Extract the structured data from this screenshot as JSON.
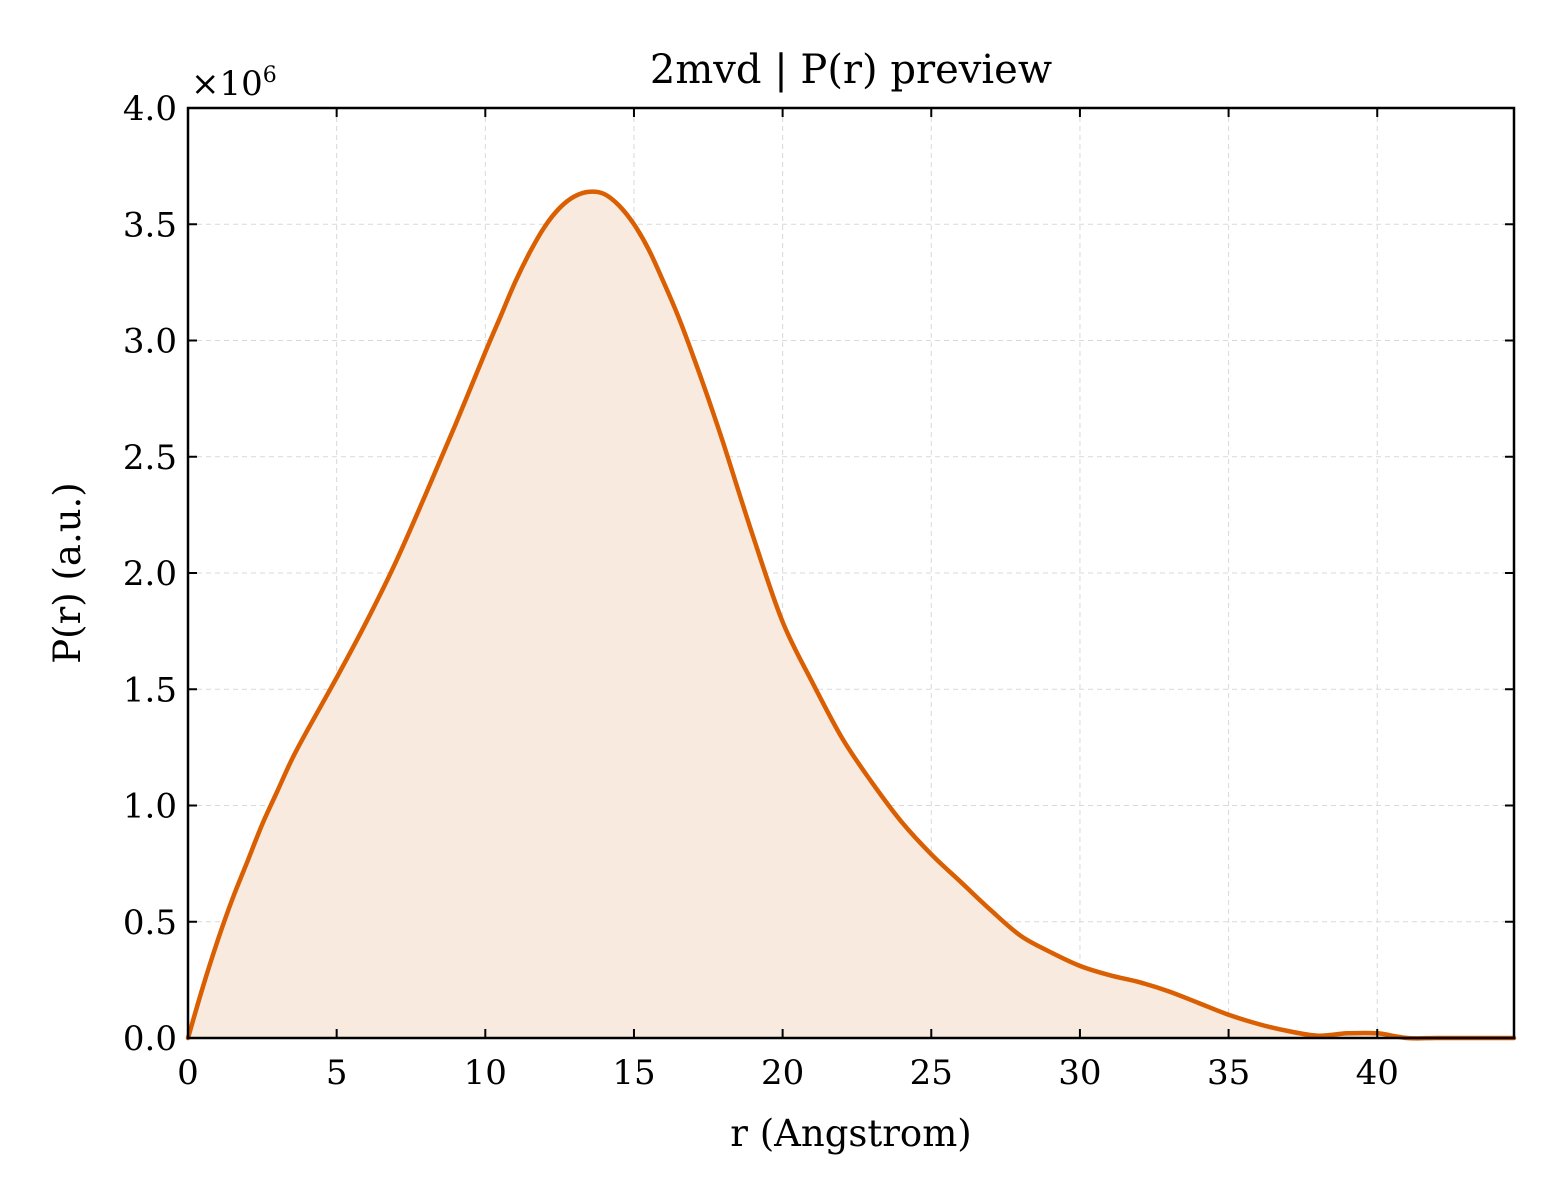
{
  "chart_data": {
    "type": "area",
    "title": "2mvd | P(r) preview",
    "xlabel": "r (Angstrom)",
    "ylabel": "P(r) (a.u.)",
    "y_offset_label": {
      "base": "×10",
      "exponent": "6"
    },
    "xlim": [
      0,
      44.6
    ],
    "ylim": [
      0,
      4.0
    ],
    "xticks": [
      0,
      5,
      10,
      15,
      20,
      25,
      30,
      35,
      40
    ],
    "yticks": [
      0.0,
      0.5,
      1.0,
      1.5,
      2.0,
      2.5,
      3.0,
      3.5,
      4.0
    ],
    "ytick_labels": [
      "0.0",
      "0.5",
      "1.0",
      "1.5",
      "2.0",
      "2.5",
      "3.0",
      "3.5",
      "4.0"
    ],
    "grid": true,
    "line_color": "#d95f02",
    "fill_color": "#f9eadf",
    "series": [
      {
        "x": [
          0,
          0.5,
          1,
          1.5,
          2,
          2.5,
          3,
          3.5,
          4,
          5,
          6,
          7,
          8,
          9,
          10,
          10.5,
          11,
          11.5,
          12,
          12.5,
          13,
          13.5,
          14,
          14.5,
          15,
          15.5,
          16,
          16.5,
          17,
          17.5,
          18,
          19,
          20,
          21,
          22,
          23,
          24,
          25,
          26,
          27,
          28,
          29,
          30,
          31,
          32,
          33,
          34,
          35,
          36,
          37,
          38,
          39,
          40,
          41,
          42,
          43,
          44,
          44.6
        ],
        "y": [
          0.0,
          0.22,
          0.42,
          0.6,
          0.76,
          0.92,
          1.06,
          1.2,
          1.32,
          1.55,
          1.79,
          2.05,
          2.34,
          2.64,
          2.95,
          3.1,
          3.25,
          3.38,
          3.49,
          3.57,
          3.62,
          3.64,
          3.63,
          3.58,
          3.5,
          3.39,
          3.25,
          3.1,
          2.93,
          2.75,
          2.56,
          2.16,
          1.79,
          1.53,
          1.29,
          1.1,
          0.93,
          0.79,
          0.67,
          0.55,
          0.44,
          0.37,
          0.31,
          0.27,
          0.24,
          0.2,
          0.15,
          0.1,
          0.06,
          0.03,
          0.01,
          0.02,
          0.02,
          0.0,
          0.0,
          0.0,
          0.0,
          0.0
        ]
      }
    ]
  }
}
